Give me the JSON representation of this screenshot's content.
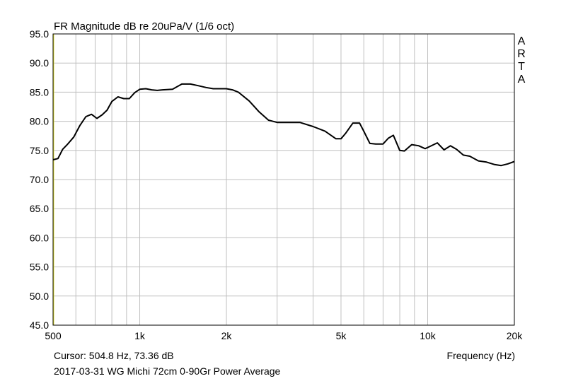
{
  "chart_data": {
    "type": "line",
    "title": "FR Magnitude dB re 20uPa/V (1/6 oct)",
    "xlabel": "Frequency (Hz)",
    "ylabel": "",
    "x_scale": "log",
    "xlim": [
      500,
      20000
    ],
    "ylim": [
      45,
      95
    ],
    "grid": true,
    "y_ticks": [
      45,
      50,
      55,
      60,
      65,
      70,
      75,
      80,
      85,
      90,
      95
    ],
    "y_tick_labels": [
      "45.0",
      "50.0",
      "55.0",
      "60.0",
      "65.0",
      "70.0",
      "75.0",
      "80.0",
      "85.0",
      "90.0",
      "95.0"
    ],
    "x_tick_labels": [
      {
        "value": 500,
        "label": "500"
      },
      {
        "value": 1000,
        "label": "1k"
      },
      {
        "value": 2000,
        "label": "2k"
      },
      {
        "value": 5000,
        "label": "5k"
      },
      {
        "value": 10000,
        "label": "10k"
      },
      {
        "value": 20000,
        "label": "20k"
      }
    ],
    "x_grid_values": [
      500,
      600,
      700,
      800,
      900,
      1000,
      2000,
      3000,
      4000,
      5000,
      6000,
      7000,
      8000,
      9000,
      10000,
      20000
    ],
    "series": [
      {
        "color": "#000000",
        "x": [
          500,
          520,
          540,
          560,
          590,
          620,
          650,
          680,
          710,
          740,
          770,
          800,
          840,
          880,
          920,
          960,
          1000,
          1050,
          1100,
          1150,
          1200,
          1300,
          1400,
          1500,
          1600,
          1700,
          1800,
          1900,
          2000,
          2100,
          2200,
          2400,
          2600,
          2800,
          3000,
          3300,
          3600,
          4000,
          4400,
          4800,
          5000,
          5200,
          5500,
          5800,
          6000,
          6300,
          6600,
          7000,
          7300,
          7600,
          8000,
          8300,
          8800,
          9300,
          9800,
          10200,
          10800,
          11400,
          12000,
          12600,
          13300,
          14000,
          15000,
          16000,
          17000,
          18000,
          19000,
          20000
        ],
        "values": [
          73.4,
          73.6,
          75.2,
          76.0,
          77.3,
          79.3,
          80.8,
          81.2,
          80.5,
          81.1,
          81.9,
          83.4,
          84.2,
          83.9,
          83.9,
          84.9,
          85.5,
          85.6,
          85.4,
          85.3,
          85.4,
          85.5,
          86.4,
          86.4,
          86.1,
          85.8,
          85.6,
          85.6,
          85.6,
          85.4,
          85.0,
          83.5,
          81.6,
          80.2,
          79.8,
          79.8,
          79.8,
          79.1,
          78.3,
          77.0,
          77.0,
          78.0,
          79.7,
          79.7,
          78.3,
          76.2,
          76.1,
          76.1,
          77.1,
          77.6,
          75.0,
          74.9,
          76.0,
          75.8,
          75.3,
          75.7,
          76.3,
          75.1,
          75.8,
          75.2,
          74.2,
          74.0,
          73.2,
          73.0,
          72.6,
          72.4,
          72.7,
          73.1
        ]
      }
    ],
    "side_brand": [
      "A",
      "R",
      "T",
      "A"
    ],
    "cursor_readout": "Cursor: 504.8 Hz, 73.36 dB",
    "caption": "2017-03-31 WG Michi 72cm 0-90Gr Power Average",
    "colors": {
      "grid": "#c0c0c0",
      "frame": "#000000",
      "cursor_line": "#e8e83a",
      "curve": "#000000",
      "background": "#ffffff"
    }
  }
}
